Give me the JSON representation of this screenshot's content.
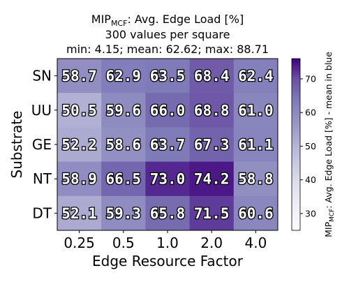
{
  "chart_data": {
    "type": "heatmap",
    "title": {
      "metric_main": "MIP",
      "metric_sub": "MCF",
      "metric_rest": ": Avg. Edge Load [%]",
      "line2": "300 values per square",
      "line3": "min: 4.15; mean: 62.62; max: 88.71"
    },
    "xlabel": "Edge Resource Factor",
    "ylabel": "Substrate",
    "x_categories": [
      "0.25",
      "0.5",
      "1.0",
      "2.0",
      "4.0"
    ],
    "y_categories": [
      "SN",
      "UU",
      "GE",
      "NT",
      "DT"
    ],
    "values": [
      [
        58.7,
        62.9,
        63.5,
        68.4,
        62.4
      ],
      [
        50.5,
        59.6,
        66.0,
        68.8,
        61.0
      ],
      [
        52.2,
        58.6,
        63.7,
        67.3,
        61.1
      ],
      [
        58.9,
        66.5,
        73.0,
        74.2,
        58.8
      ],
      [
        52.1,
        59.3,
        65.8,
        71.5,
        60.6
      ]
    ],
    "colorbar": {
      "label_main": "MIP",
      "label_sub": "MCF",
      "label_rest": ": Avg. Edge Load [%] - mean in blue",
      "range": [
        25,
        76
      ],
      "ticks": [
        30,
        40,
        50,
        60,
        70
      ],
      "colormap": "Purples",
      "color_low": "#fcfbfd",
      "color_high": "#3f007d"
    }
  }
}
